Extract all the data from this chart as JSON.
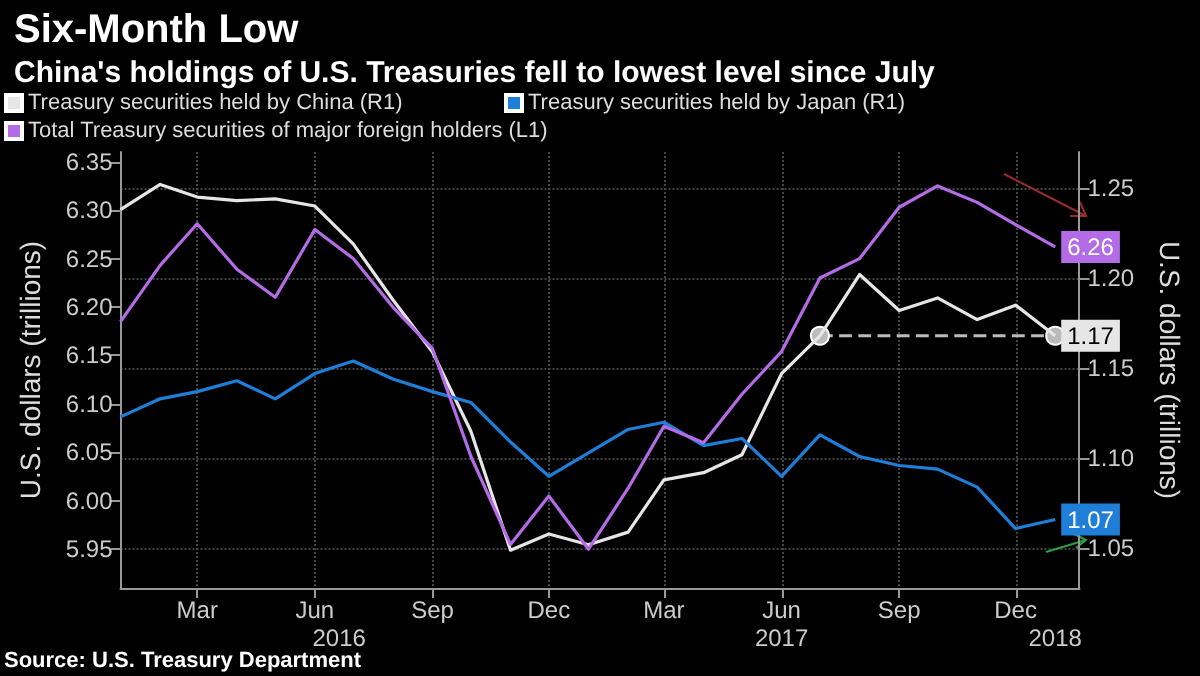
{
  "chart_data": {
    "type": "line",
    "title": "Six-Month Low",
    "subtitle": "China's holdings of U.S. Treasuries fell to lowest level since July",
    "ylabel": "U.S. dollars (trillions)",
    "y2label": "U.S. dollars (trillions)",
    "x": [
      "2016-01",
      "2016-02",
      "2016-03",
      "2016-04",
      "2016-05",
      "2016-06",
      "2016-07",
      "2016-08",
      "2016-09",
      "2016-10",
      "2016-11",
      "2016-12",
      "2017-01",
      "2017-02",
      "2017-03",
      "2017-04",
      "2017-05",
      "2017-06",
      "2017-07",
      "2017-08",
      "2017-09",
      "2017-10",
      "2017-11",
      "2017-12",
      "2018-01"
    ],
    "series": [
      {
        "name": "Treasury securities held by China (R1)",
        "color": "#e6e6e6",
        "axis": "y2",
        "values": [
          1.238,
          1.252,
          1.245,
          1.243,
          1.244,
          1.24,
          1.219,
          1.188,
          1.159,
          1.115,
          1.049,
          1.058,
          1.052,
          1.059,
          1.088,
          1.092,
          1.102,
          1.147,
          1.168,
          1.202,
          1.182,
          1.189,
          1.177,
          1.185,
          1.168
        ],
        "value_labels": [
          null,
          null,
          null,
          null,
          null,
          null,
          null,
          null,
          null,
          null,
          null,
          null,
          null,
          null,
          null,
          null,
          null,
          null,
          null,
          null,
          null,
          null,
          null,
          null,
          "1.17"
        ]
      },
      {
        "name": "Treasury securities held by Japan (R1)",
        "color": "#1f7fd8",
        "axis": "y2",
        "values": [
          1.123,
          1.133,
          1.137,
          1.143,
          1.133,
          1.147,
          1.154,
          1.144,
          1.137,
          1.131,
          1.109,
          1.09,
          1.103,
          1.116,
          1.12,
          1.107,
          1.111,
          1.09,
          1.113,
          1.101,
          1.096,
          1.094,
          1.084,
          1.061,
          1.066
        ],
        "value_labels": [
          null,
          null,
          null,
          null,
          null,
          null,
          null,
          null,
          null,
          null,
          null,
          null,
          null,
          null,
          null,
          null,
          null,
          null,
          null,
          null,
          null,
          null,
          null,
          null,
          "1.07"
        ]
      },
      {
        "name": "Total Treasury securities of major foreign holders (L1)",
        "color": "#b36be6",
        "axis": "y",
        "values": [
          6.185,
          6.243,
          6.286,
          6.239,
          6.21,
          6.28,
          6.25,
          6.2,
          6.157,
          6.046,
          5.955,
          6.005,
          5.95,
          6.013,
          6.077,
          6.06,
          6.11,
          6.154,
          6.23,
          6.25,
          6.303,
          6.325,
          6.308,
          6.285,
          6.262
        ],
        "value_labels": [
          null,
          null,
          null,
          null,
          null,
          null,
          null,
          null,
          null,
          null,
          null,
          null,
          null,
          null,
          null,
          null,
          null,
          null,
          null,
          null,
          null,
          null,
          null,
          null,
          "6.26"
        ]
      },
      {
        "type": "line",
        "color": "#bbbbbb",
        "axis": "y2",
        "x": [
          "2017-07",
          "2018-01"
        ],
        "values": [
          1.168,
          1.168
        ],
        "line_style": "dashed",
        "marker": "circle"
      }
    ],
    "xlim": [
      "2016-01",
      "2018-01-20"
    ],
    "xticks": [
      {
        "value": "2016-03",
        "label": "Mar"
      },
      {
        "value": "2016-06",
        "label": "Jun"
      },
      {
        "value": "2016-09",
        "label": "Sep"
      },
      {
        "value": "2016-12",
        "label": "Dec"
      },
      {
        "value": "2017-03",
        "label": "Mar"
      },
      {
        "value": "2017-06",
        "label": "Jun"
      },
      {
        "value": "2017-09",
        "label": "Sep"
      },
      {
        "value": "2017-12",
        "label": "Dec"
      }
    ],
    "x2lim": [
      "2016-01",
      "2018-01-20"
    ],
    "x2ticks": [
      {
        "value": "2016-06-20",
        "label": "2016"
      },
      {
        "value": "2017-06",
        "label": "2017"
      },
      {
        "value": "2018-01",
        "label": "2018"
      }
    ],
    "ylim": [
      5.91,
      6.36
    ],
    "yticks": [
      5.95,
      {
        "value": 6.0,
        "label": "6.00"
      },
      6.05,
      {
        "value": 6.1,
        "label": "6.10"
      },
      6.15,
      {
        "value": 6.2,
        "label": "6.20"
      },
      6.25,
      {
        "value": 6.3,
        "label": "6.30"
      },
      6.35
    ],
    "y2lim": [
      1.028,
      1.27
    ],
    "y2ticks": [
      1.05,
      {
        "value": 1.1,
        "label": "1.10"
      },
      1.15,
      {
        "value": 1.2,
        "label": "1.20"
      },
      1.25
    ],
    "grid": true,
    "legend": "top left",
    "marker": "none",
    "line_style": "solid",
    "annotations": [
      "Source: U.S. Treasury Department"
    ]
  }
}
